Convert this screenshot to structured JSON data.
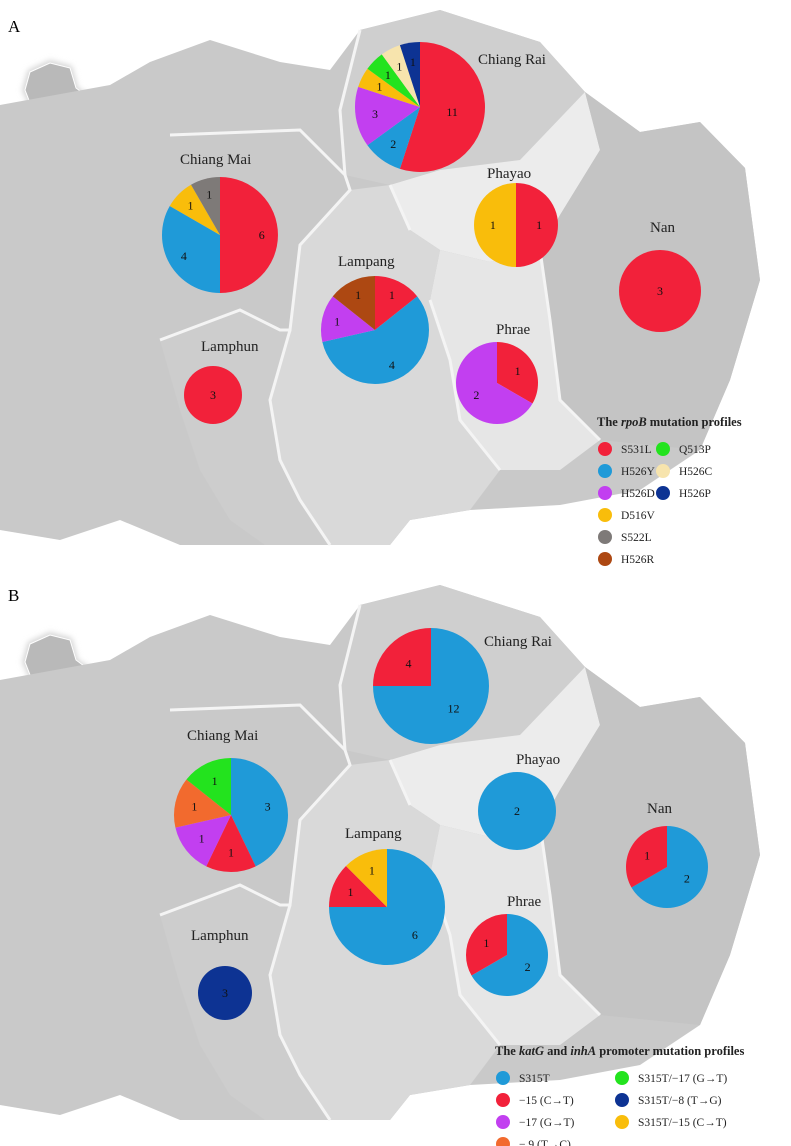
{
  "panels": [
    {
      "letter": "A",
      "legend": {
        "title_parts": [
          {
            "text": "The ",
            "italic": false
          },
          {
            "text": "rpoB",
            "italic": true
          },
          {
            "text": " mutation profiles",
            "italic": false
          }
        ],
        "items": [
          {
            "label": "S531L",
            "color": "#f2213a"
          },
          {
            "label": "H526Y",
            "color": "#1f9ad8"
          },
          {
            "label": "H526D",
            "color": "#c23ff0"
          },
          {
            "label": "D516V",
            "color": "#f9bd0b"
          },
          {
            "label": "S522L",
            "color": "#7e7a78"
          },
          {
            "label": "H526R",
            "color": "#ad4812"
          },
          {
            "label": "Q513P",
            "color": "#23e31e"
          },
          {
            "label": "H526C",
            "color": "#f7e4ad"
          },
          {
            "label": "H526P",
            "color": "#0d3393"
          }
        ]
      },
      "provinces": [
        {
          "name": "Chiang Rai",
          "slices": [
            {
              "label": "S531L",
              "value": 11
            },
            {
              "label": "H526Y",
              "value": 2
            },
            {
              "label": "H526D",
              "value": 3
            },
            {
              "label": "D516V",
              "value": 1
            },
            {
              "label": "Q513P",
              "value": 1
            },
            {
              "label": "H526C",
              "value": 1
            },
            {
              "label": "H526P",
              "value": 1
            }
          ]
        },
        {
          "name": "Chiang Mai",
          "slices": [
            {
              "label": "S531L",
              "value": 6
            },
            {
              "label": "H526Y",
              "value": 4
            },
            {
              "label": "D516V",
              "value": 1
            },
            {
              "label": "S522L",
              "value": 1
            }
          ]
        },
        {
          "name": "Phayao",
          "slices": [
            {
              "label": "S531L",
              "value": 1
            },
            {
              "label": "D516V",
              "value": 1
            }
          ]
        },
        {
          "name": "Nan",
          "slices": [
            {
              "label": "S531L",
              "value": 3
            }
          ]
        },
        {
          "name": "Lampang",
          "slices": [
            {
              "label": "S531L",
              "value": 1
            },
            {
              "label": "H526Y",
              "value": 4
            },
            {
              "label": "H526D",
              "value": 1
            },
            {
              "label": "H526R",
              "value": 1
            }
          ]
        },
        {
          "name": "Lamphun",
          "slices": [
            {
              "label": "S531L",
              "value": 3
            }
          ]
        },
        {
          "name": "Phrae",
          "slices": [
            {
              "label": "S531L",
              "value": 1
            },
            {
              "label": "H526D",
              "value": 2
            }
          ]
        }
      ]
    },
    {
      "letter": "B",
      "legend": {
        "title_parts": [
          {
            "text": "The ",
            "italic": false
          },
          {
            "text": "katG",
            "italic": true
          },
          {
            "text": "  and ",
            "italic": false
          },
          {
            "text": "inhA",
            "italic": true
          },
          {
            "text": " promoter mutation profiles",
            "italic": false
          }
        ],
        "items": [
          {
            "label": "S315T",
            "color": "#1f9ad8"
          },
          {
            "label": "−15 (C→T)",
            "color": "#f2213a"
          },
          {
            "label": "−17 (G→T)",
            "color": "#c23ff0"
          },
          {
            "label": "− 9 (T→C)",
            "color": "#f26a2e"
          },
          {
            "label": "S315T/−17 (G→T)",
            "color": "#23e31e"
          },
          {
            "label": "S315T/−8 (T→G)",
            "color": "#0d3393"
          },
          {
            "label": "S315T/−15 (C→T)",
            "color": "#f9bd0b"
          }
        ]
      },
      "provinces": [
        {
          "name": "Chiang Rai",
          "slices": [
            {
              "label": "S315T",
              "value": 12
            },
            {
              "label": "−15 (C→T)",
              "value": 4
            }
          ]
        },
        {
          "name": "Chiang Mai",
          "slices": [
            {
              "label": "S315T",
              "value": 3
            },
            {
              "label": "−15 (C→T)",
              "value": 1
            },
            {
              "label": "−17 (G→T)",
              "value": 1
            },
            {
              "label": "− 9 (T→C)",
              "value": 1
            },
            {
              "label": "S315T/−17 (G→T)",
              "value": 1
            }
          ]
        },
        {
          "name": "Phayao",
          "slices": [
            {
              "label": "S315T",
              "value": 2
            }
          ]
        },
        {
          "name": "Nan",
          "slices": [
            {
              "label": "S315T",
              "value": 2
            },
            {
              "label": "−15 (C→T)",
              "value": 1
            }
          ]
        },
        {
          "name": "Lampang",
          "slices": [
            {
              "label": "S315T",
              "value": 6
            },
            {
              "label": "−15 (C→T)",
              "value": 1
            },
            {
              "label": "S315T/−15 (C→T)",
              "value": 1
            }
          ]
        },
        {
          "name": "Lamphun",
          "slices": [
            {
              "label": "S315T/−8 (T→G)",
              "value": 3
            }
          ]
        },
        {
          "name": "Phrae",
          "slices": [
            {
              "label": "S315T",
              "value": 2
            },
            {
              "label": "−15 (C→T)",
              "value": 1
            }
          ]
        }
      ]
    }
  ]
}
